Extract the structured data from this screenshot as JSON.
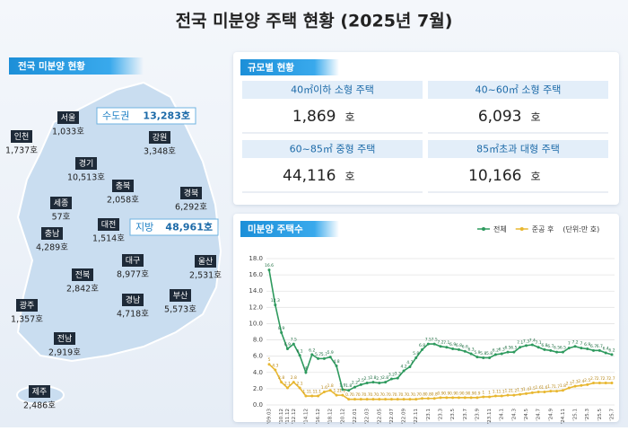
{
  "title": "전국 미분양 주택 현황  (2025년 7월)",
  "map": {
    "header": "전국 미분양 현황",
    "capital": {
      "label": "수도권",
      "value": "13,283호"
    },
    "provincial": {
      "label": "지방",
      "value": "48,961호"
    },
    "regions": [
      {
        "name": "서울",
        "value": "1,033호"
      },
      {
        "name": "인천",
        "value": "1,737호"
      },
      {
        "name": "경기",
        "value": "10,513호"
      },
      {
        "name": "강원",
        "value": "3,348호"
      },
      {
        "name": "충북",
        "value": "2,058호"
      },
      {
        "name": "경북",
        "value": "6,292호"
      },
      {
        "name": "세종",
        "value": "57호"
      },
      {
        "name": "대전",
        "value": "1,514호"
      },
      {
        "name": "충남",
        "value": "4,289호"
      },
      {
        "name": "대구",
        "value": "8,977호"
      },
      {
        "name": "울산",
        "value": "2,531호"
      },
      {
        "name": "전북",
        "value": "2,842호"
      },
      {
        "name": "경남",
        "value": "4,718호"
      },
      {
        "name": "부산",
        "value": "5,573호"
      },
      {
        "name": "광주",
        "value": "1,357호"
      },
      {
        "name": "전남",
        "value": "2,919호"
      },
      {
        "name": "제주",
        "value": "2,486호"
      }
    ]
  },
  "sizes": {
    "header": "규모별 현황",
    "cells": [
      {
        "label": "40㎡이하 소형 주택",
        "value": "1,869",
        "unit": "호"
      },
      {
        "label": "40~60㎡ 소형 주택",
        "value": "6,093",
        "unit": "호"
      },
      {
        "label": "60~85㎡ 중형 주택",
        "value": "44,116",
        "unit": "호"
      },
      {
        "label": "85㎡초과 대형 주택",
        "value": "10,166",
        "unit": "호"
      }
    ]
  },
  "chart_data": {
    "type": "line",
    "title": "미분양 주택수",
    "unit_note": "(단위:만 호)",
    "categories": [
      "'09.03",
      null,
      "'10.12",
      "'11.12",
      "'12.12",
      null,
      "'14.12",
      null,
      "'16.12",
      null,
      "'18.12",
      null,
      "'20.12",
      null,
      "'22.01",
      null,
      "'22.03",
      null,
      "'22.05",
      null,
      "'22.07",
      null,
      "'22.09",
      null,
      "'22.11",
      null,
      "'23.1",
      null,
      "'23.3",
      null,
      "'23.5",
      null,
      "'23.7",
      null,
      "'23.9",
      null,
      "'23.11",
      null,
      "'24.1",
      null,
      "'24.3",
      null,
      "'24.5",
      null,
      "'24.7",
      null,
      "'24.9",
      null,
      "'24.11",
      null,
      "'25.1",
      null,
      "'25.3",
      null,
      "'25.5",
      null,
      "'25.7"
    ],
    "series": [
      {
        "name": "전체",
        "color": "#2e9a5e",
        "values": [
          16.6,
          12.3,
          8.9,
          6.9,
          7.5,
          6.1,
          4.0,
          6.2,
          5.7,
          5.7,
          5.9,
          4.8,
          1.9,
          1.8,
          2.2,
          2.5,
          2.7,
          2.8,
          2.7,
          2.8,
          3.2,
          3.3,
          4.2,
          4.7,
          5.8,
          6.8,
          7.5,
          7.5,
          7.2,
          7.1,
          6.9,
          6.8,
          6.6,
          6.3,
          5.9,
          5.8,
          5.8,
          6.2,
          6.3,
          6.5,
          6.5,
          7.1,
          7.3,
          7.4,
          7.1,
          6.8,
          6.7,
          6.5,
          6.5,
          7.0,
          7.2,
          7.0,
          6.9,
          6.7,
          6.7,
          6.4,
          6.2
        ]
      },
      {
        "name": "준공 후",
        "color": "#e8b730",
        "values": [
          5.0,
          4.3,
          2.8,
          2.1,
          2.8,
          2.1,
          1.1,
          1.1,
          1.1,
          1.6,
          1.8,
          1.2,
          1.2,
          0.7,
          0.7,
          0.7,
          0.7,
          0.7,
          0.7,
          0.7,
          0.7,
          0.7,
          0.7,
          0.7,
          0.7,
          0.8,
          0.8,
          0.8,
          0.9,
          0.9,
          0.9,
          0.9,
          0.9,
          0.9,
          0.9,
          1.0,
          1.0,
          1.1,
          1.1,
          1.2,
          1.2,
          1.3,
          1.4,
          1.5,
          1.6,
          1.6,
          1.7,
          1.7,
          1.8,
          2.1,
          2.3,
          2.4,
          2.5,
          2.7,
          2.7,
          2.7,
          2.7
        ]
      }
    ],
    "ylim": [
      0,
      18
    ],
    "yticks": [
      {
        "value": 0,
        "label": "0.0"
      },
      {
        "value": 2,
        "label": "2.0"
      },
      {
        "value": 4,
        "label": "4.0"
      },
      {
        "value": 6,
        "label": "6.0"
      },
      {
        "value": 8,
        "label": "8.0"
      },
      {
        "value": 10,
        "label": "10.0"
      },
      {
        "value": 12,
        "label": "12.0"
      },
      {
        "value": 14,
        "label": "14.0"
      },
      {
        "value": 16,
        "label": "16.0"
      },
      {
        "value": 18,
        "label": "18.0"
      }
    ],
    "grid": true
  }
}
